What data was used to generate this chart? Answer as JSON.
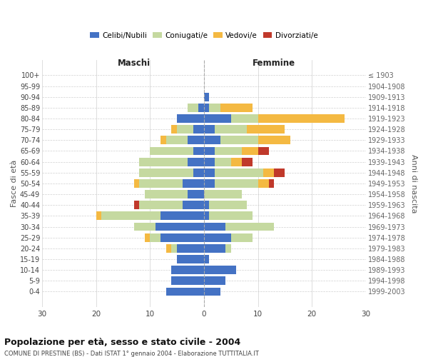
{
  "age_groups": [
    "0-4",
    "5-9",
    "10-14",
    "15-19",
    "20-24",
    "25-29",
    "30-34",
    "35-39",
    "40-44",
    "45-49",
    "50-54",
    "55-59",
    "60-64",
    "65-69",
    "70-74",
    "75-79",
    "80-84",
    "85-89",
    "90-94",
    "95-99",
    "100+"
  ],
  "birth_years": [
    "1999-2003",
    "1994-1998",
    "1989-1993",
    "1984-1988",
    "1979-1983",
    "1974-1978",
    "1969-1973",
    "1964-1968",
    "1959-1963",
    "1954-1958",
    "1949-1953",
    "1944-1948",
    "1939-1943",
    "1934-1938",
    "1929-1933",
    "1924-1928",
    "1919-1923",
    "1914-1918",
    "1909-1913",
    "1904-1908",
    "≤ 1903"
  ],
  "maschi_celibi": [
    7,
    6,
    6,
    5,
    5,
    8,
    9,
    8,
    4,
    3,
    4,
    2,
    3,
    2,
    3,
    2,
    5,
    1,
    0,
    0,
    0
  ],
  "maschi_coniugati": [
    0,
    0,
    0,
    0,
    1,
    2,
    4,
    11,
    8,
    8,
    8,
    10,
    9,
    8,
    4,
    3,
    0,
    2,
    0,
    0,
    0
  ],
  "maschi_vedovi": [
    0,
    0,
    0,
    0,
    1,
    1,
    0,
    1,
    0,
    0,
    1,
    0,
    0,
    0,
    1,
    1,
    0,
    0,
    0,
    0,
    0
  ],
  "maschi_divorziati": [
    0,
    0,
    0,
    0,
    0,
    0,
    0,
    0,
    1,
    0,
    0,
    0,
    0,
    0,
    0,
    0,
    0,
    0,
    0,
    0,
    0
  ],
  "femmine_nubili": [
    3,
    4,
    6,
    1,
    4,
    5,
    4,
    1,
    1,
    0,
    2,
    2,
    2,
    2,
    3,
    2,
    5,
    1,
    1,
    0,
    0
  ],
  "femmine_coniugate": [
    0,
    0,
    0,
    0,
    1,
    4,
    9,
    8,
    7,
    7,
    8,
    9,
    3,
    5,
    7,
    6,
    5,
    2,
    0,
    0,
    0
  ],
  "femmine_vedove": [
    0,
    0,
    0,
    0,
    0,
    0,
    0,
    0,
    0,
    0,
    2,
    2,
    2,
    3,
    6,
    7,
    16,
    6,
    0,
    0,
    0
  ],
  "femmine_divorziate": [
    0,
    0,
    0,
    0,
    0,
    0,
    0,
    0,
    0,
    0,
    1,
    2,
    2,
    2,
    0,
    0,
    0,
    0,
    0,
    0,
    0
  ],
  "color_celibi": "#4472C4",
  "color_coniugati": "#c5d9a0",
  "color_vedovi": "#F4B942",
  "color_divorziati": "#C0392B",
  "xlim_min": -30,
  "xlim_max": 30,
  "xtick_vals": [
    -30,
    -20,
    -10,
    0,
    10,
    20,
    30
  ],
  "xtick_labels": [
    "30",
    "20",
    "10",
    "0",
    "10",
    "20",
    "30"
  ],
  "title": "Popolazione per età, sesso e stato civile - 2004",
  "subtitle": "COMUNE DI PRESTINE (BS) - Dati ISTAT 1° gennaio 2004 - Elaborazione TUTTITALIA.IT",
  "ylabel_left": "Fasce di età",
  "ylabel_right": "Anni di nascita",
  "label_maschi": "Maschi",
  "label_femmine": "Femmine",
  "legend_labels": [
    "Celibi/Nubili",
    "Coniugati/e",
    "Vedovi/e",
    "Divorziati/e"
  ],
  "bg_color": "#ffffff",
  "grid_color": "#d0d0d0",
  "bar_height": 0.78
}
